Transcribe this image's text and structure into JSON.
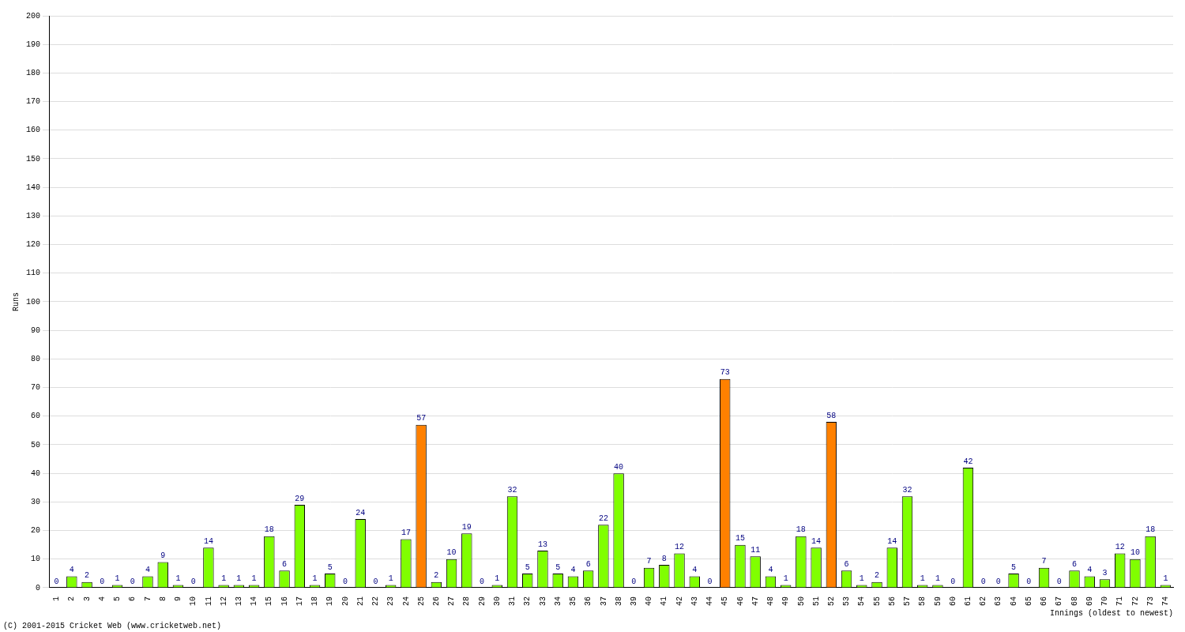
{
  "chart_data": {
    "type": "bar",
    "x_label": "Innings (oldest to newest)",
    "y_label": "Runs",
    "annotations": [
      "(C) 2001-2015 Cricket Web (www.cricketweb.net)"
    ],
    "categories": [
      "1",
      "2",
      "3",
      "4",
      "5",
      "6",
      "7",
      "8",
      "9",
      "10",
      "11",
      "12",
      "13",
      "14",
      "15",
      "16",
      "17",
      "18",
      "19",
      "20",
      "21",
      "22",
      "23",
      "24",
      "25",
      "26",
      "27",
      "28",
      "29",
      "30",
      "31",
      "32",
      "33",
      "34",
      "35",
      "36",
      "37",
      "38",
      "39",
      "40",
      "41",
      "42",
      "43",
      "44",
      "45",
      "46",
      "47",
      "48",
      "49",
      "50",
      "51",
      "52",
      "53",
      "54",
      "55",
      "56",
      "57",
      "58",
      "59",
      "60",
      "61",
      "62",
      "63",
      "64",
      "65",
      "66",
      "67",
      "68",
      "69",
      "70",
      "71",
      "72",
      "73",
      "74"
    ],
    "values": [
      0,
      4,
      2,
      0,
      1,
      0,
      4,
      9,
      1,
      0,
      14,
      1,
      1,
      1,
      18,
      6,
      29,
      1,
      5,
      0,
      24,
      0,
      1,
      17,
      57,
      2,
      10,
      19,
      0,
      1,
      32,
      5,
      13,
      5,
      4,
      6,
      22,
      40,
      0,
      7,
      8,
      12,
      4,
      0,
      73,
      15,
      11,
      4,
      1,
      18,
      14,
      58,
      6,
      1,
      2,
      14,
      32,
      1,
      1,
      0,
      42,
      0,
      0,
      5,
      0,
      7,
      0,
      6,
      4,
      3,
      12,
      10,
      18,
      1
    ],
    "colors": [
      "#80ff00",
      "#80ff00",
      "#80ff00",
      "#80ff00",
      "#80ff00",
      "#80ff00",
      "#80ff00",
      "#80ff00",
      "#80ff00",
      "#80ff00",
      "#80ff00",
      "#80ff00",
      "#80ff00",
      "#80ff00",
      "#80ff00",
      "#80ff00",
      "#80ff00",
      "#80ff00",
      "#80ff00",
      "#80ff00",
      "#80ff00",
      "#80ff00",
      "#80ff00",
      "#80ff00",
      "#ff8000",
      "#80ff00",
      "#80ff00",
      "#80ff00",
      "#80ff00",
      "#80ff00",
      "#80ff00",
      "#80ff00",
      "#80ff00",
      "#80ff00",
      "#80ff00",
      "#80ff00",
      "#80ff00",
      "#80ff00",
      "#80ff00",
      "#80ff00",
      "#80ff00",
      "#80ff00",
      "#80ff00",
      "#80ff00",
      "#ff8000",
      "#80ff00",
      "#80ff00",
      "#80ff00",
      "#80ff00",
      "#80ff00",
      "#80ff00",
      "#ff8000",
      "#80ff00",
      "#80ff00",
      "#80ff00",
      "#80ff00",
      "#80ff00",
      "#80ff00",
      "#80ff00",
      "#80ff00",
      "#80ff00",
      "#80ff00",
      "#80ff00",
      "#80ff00",
      "#80ff00",
      "#80ff00",
      "#80ff00",
      "#80ff00",
      "#80ff00",
      "#80ff00",
      "#80ff00",
      "#80ff00",
      "#80ff00",
      "#80ff00"
    ],
    "ylim": [
      0,
      200
    ],
    "yticks": [
      0,
      10,
      20,
      30,
      40,
      50,
      60,
      70,
      80,
      90,
      100,
      110,
      120,
      130,
      140,
      150,
      160,
      170,
      180,
      190,
      200
    ],
    "grid": true,
    "data_labels": true
  }
}
